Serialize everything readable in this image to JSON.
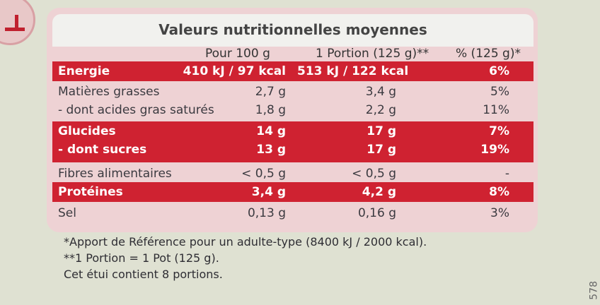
{
  "title": "Valeurs nutritionnelles moyennes",
  "headers": [
    "Pour 100 g",
    "1 Portion (125 g)**",
    "% (125 g)*"
  ],
  "rows": [
    {
      "label": "Energie",
      "per100": "410 kJ / 97 kcal",
      "portion": "513 kJ / 122 kcal",
      "pct": "6%"
    },
    {
      "label": "Matières grasses",
      "per100": "2,7 g",
      "portion": "3,4 g",
      "pct": "5%"
    },
    {
      "label": "- dont acides gras saturés",
      "per100": "1,8 g",
      "portion": "2,2 g",
      "pct": "11%"
    },
    {
      "label": "Glucides",
      "per100": "14 g",
      "portion": "17 g",
      "pct": "7%"
    },
    {
      "label": "- dont sucres",
      "per100": "13 g",
      "portion": "17 g",
      "pct": "19%"
    },
    {
      "label": "Fibres alimentaires",
      "per100": "< 0,5 g",
      "portion": "< 0,5 g",
      "pct": "-"
    },
    {
      "label": "Protéines",
      "per100": "3,4 g",
      "portion": "4,2 g",
      "pct": "8%"
    },
    {
      "label": "Sel",
      "per100": "0,13 g",
      "portion": "0,16 g",
      "pct": "3%"
    }
  ],
  "footnotes": [
    "*Apport de Référence pour un adulte-type (8400 kJ / 2000 kcal).",
    "**1 Portion = 1 Pot (125 g).",
    "Cet étui contient 8 portions."
  ],
  "edge_code": "578",
  "colors": {
    "highlight_band": "#cf2231",
    "card": "#eed2d4",
    "background": "#dfe1d2"
  }
}
